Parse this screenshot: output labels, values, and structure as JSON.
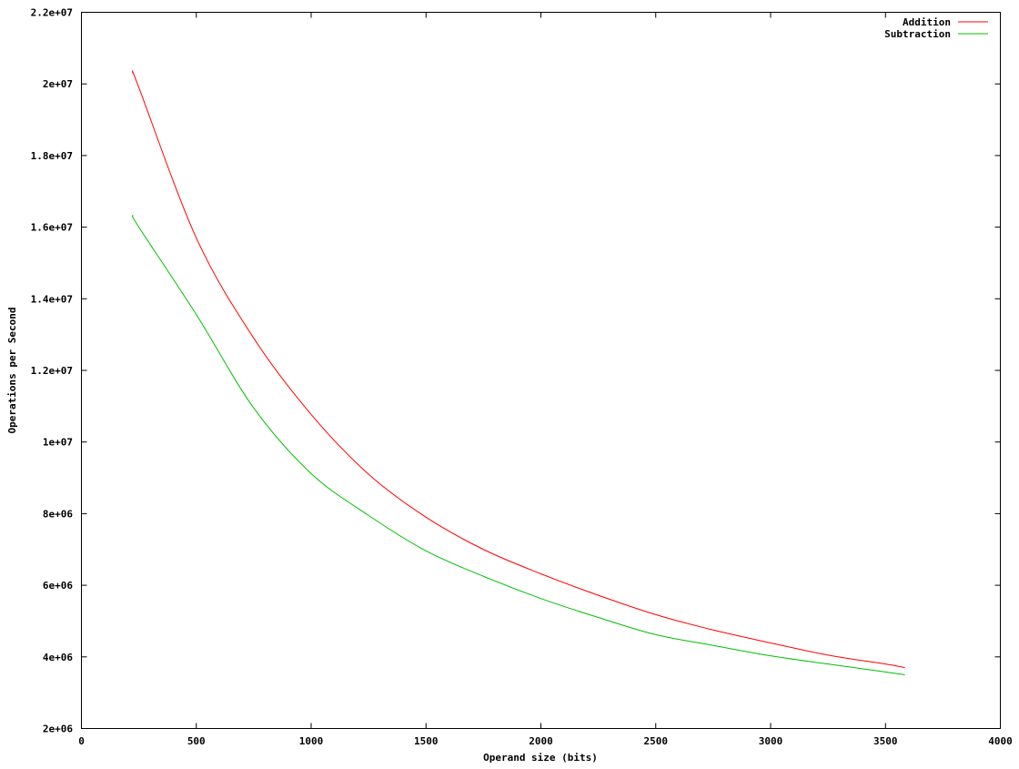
{
  "chart_data": {
    "type": "line",
    "title": "",
    "xlabel": "Operand size (bits)",
    "ylabel": "Operations per Second",
    "xlim": [
      0,
      4000
    ],
    "ylim": [
      2000000,
      22000000
    ],
    "grid": false,
    "legend_position": "top-right",
    "x_ticks": [
      {
        "value": 0,
        "label": "0"
      },
      {
        "value": 500,
        "label": "500"
      },
      {
        "value": 1000,
        "label": "1000"
      },
      {
        "value": 1500,
        "label": "1500"
      },
      {
        "value": 2000,
        "label": "2000"
      },
      {
        "value": 2500,
        "label": "2500"
      },
      {
        "value": 3000,
        "label": "3000"
      },
      {
        "value": 3500,
        "label": "3500"
      },
      {
        "value": 4000,
        "label": "4000"
      }
    ],
    "y_ticks": [
      {
        "value": 2000000,
        "label": "2e+06"
      },
      {
        "value": 4000000,
        "label": "4e+06"
      },
      {
        "value": 6000000,
        "label": "6e+06"
      },
      {
        "value": 8000000,
        "label": "8e+06"
      },
      {
        "value": 10000000,
        "label": "1e+07"
      },
      {
        "value": 12000000,
        "label": "1.2e+07"
      },
      {
        "value": 14000000,
        "label": "1.4e+07"
      },
      {
        "value": 16000000,
        "label": "1.6e+07"
      },
      {
        "value": 18000000,
        "label": "1.8e+07"
      },
      {
        "value": 20000000,
        "label": "2e+07"
      },
      {
        "value": 22000000,
        "label": "2.2e+07"
      }
    ],
    "series": [
      {
        "name": "Addition",
        "color": "#ff0000",
        "x": [
          224,
          250,
          500,
          750,
          1000,
          1250,
          1500,
          1750,
          2000,
          2250,
          2500,
          2750,
          3000,
          3250,
          3500,
          3584
        ],
        "y": [
          20300000,
          19900000,
          15700000,
          12900000,
          10770000,
          9100000,
          7900000,
          7000000,
          6320000,
          5720000,
          5180000,
          4750000,
          4390000,
          4050000,
          3800000,
          3700000
        ]
      },
      {
        "name": "Subtraction",
        "color": "#00c000",
        "x": [
          224,
          250,
          500,
          750,
          1000,
          1250,
          1500,
          1750,
          2000,
          2250,
          2500,
          2750,
          3000,
          3250,
          3500,
          3584
        ],
        "y": [
          16330000,
          16000000,
          13560000,
          10950000,
          9120000,
          7950000,
          6960000,
          6250000,
          5630000,
          5100000,
          4620000,
          4320000,
          4030000,
          3800000,
          3580000,
          3500000
        ]
      }
    ]
  }
}
